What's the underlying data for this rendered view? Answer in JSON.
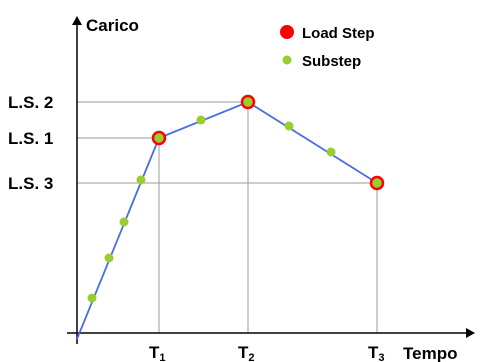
{
  "axes": {
    "y_title": "Carico",
    "x_title": "Tempo"
  },
  "legend": {
    "load_step": "Load Step",
    "substep": "Substep"
  },
  "y_levels": {
    "ls2": "L.S. 2",
    "ls1": "L.S. 1",
    "ls3": "L.S. 3"
  },
  "x_ticks": {
    "t1": {
      "main": "T",
      "sub": "1"
    },
    "t2": {
      "main": "T",
      "sub": "2"
    },
    "t3": {
      "main": "T",
      "sub": "3"
    }
  },
  "colors": {
    "load_step_fill": "#9acd32",
    "load_step_ring": "#ff0000",
    "legend_load_step": "#ff0000",
    "substep": "#9acd32",
    "curve": "#4a6de5",
    "guide": "#9a9a9a",
    "axis": "#000000"
  },
  "icons": {
    "load_step": "red-circle-icon",
    "substep": "green-dot-icon"
  }
}
